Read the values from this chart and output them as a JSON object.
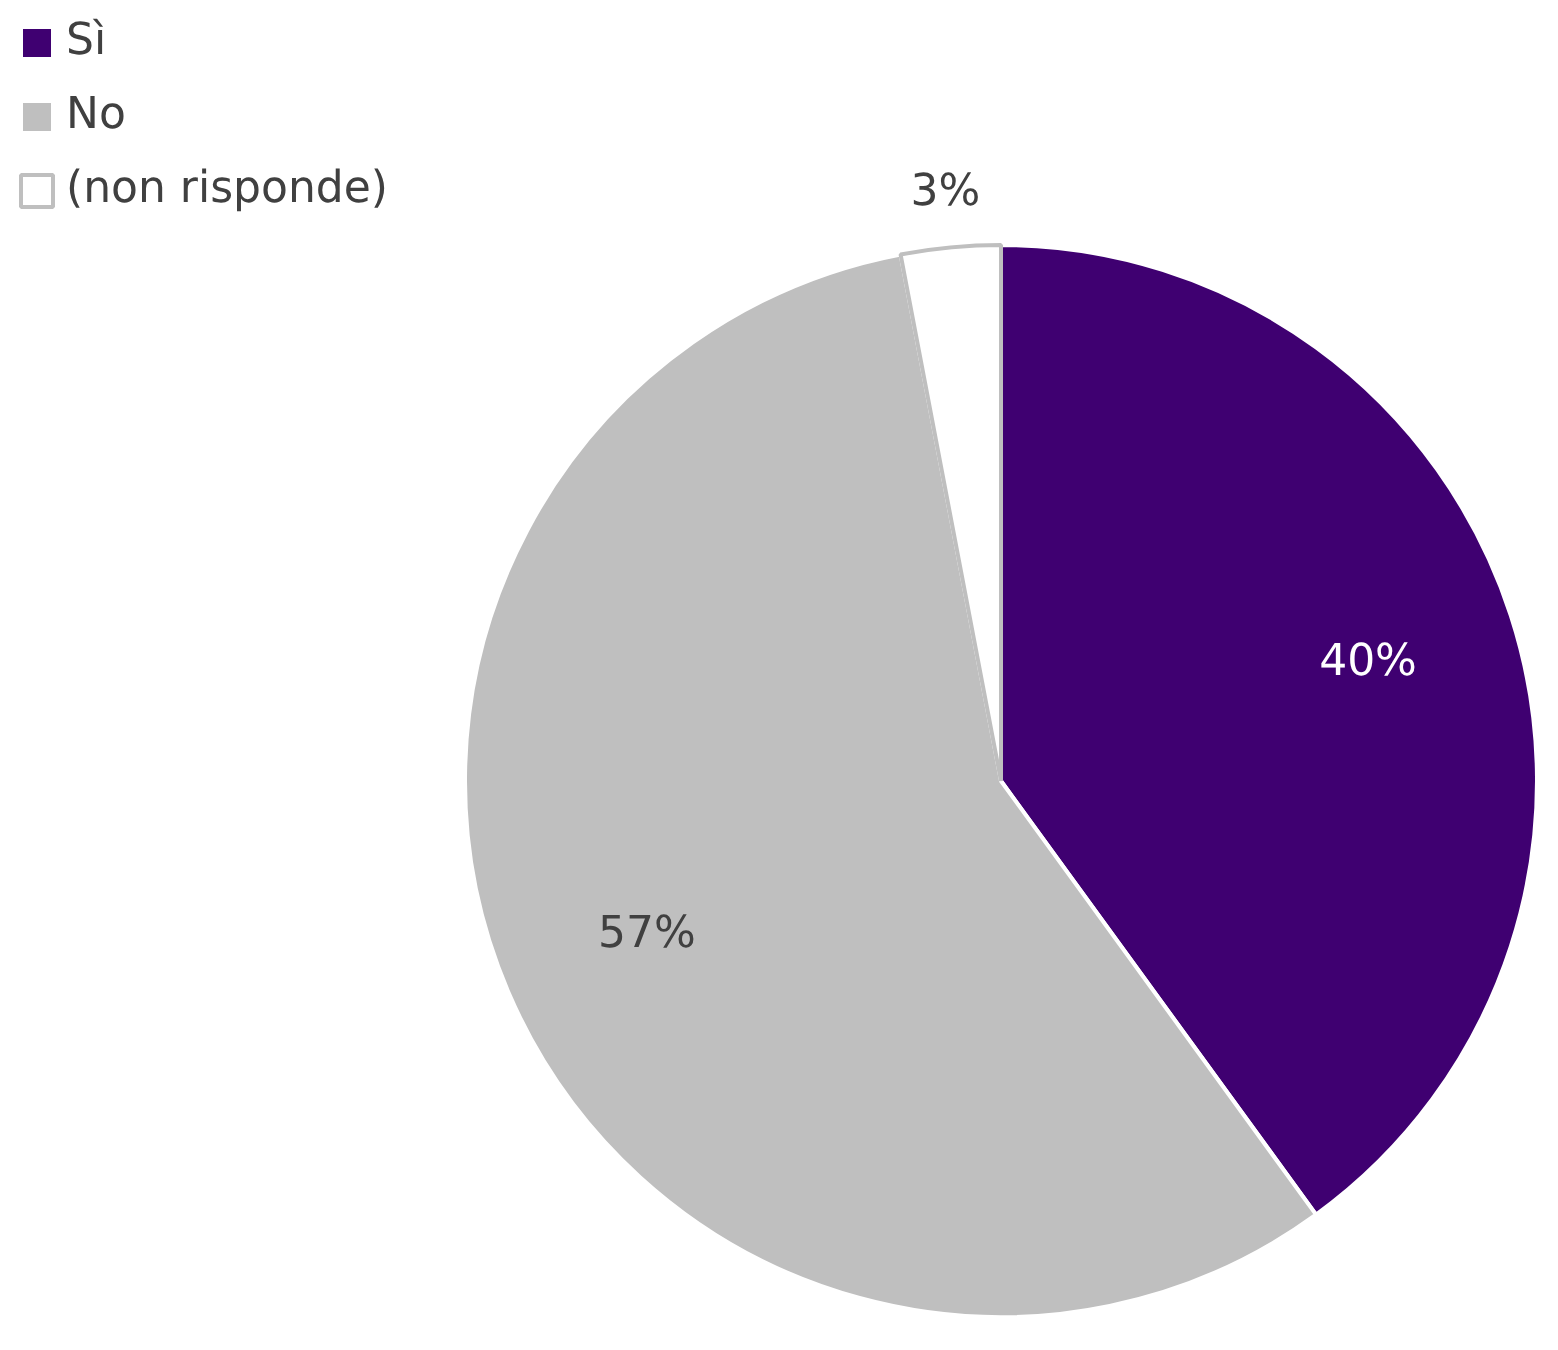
{
  "chart_data": {
    "type": "pie",
    "categories": [
      "Sì",
      "No",
      "(non risponde)"
    ],
    "values": [
      40,
      57,
      3
    ],
    "colors": [
      "#3f0071",
      "#bfbfbf",
      "#ffffff"
    ],
    "value_labels": [
      "40%",
      "57%",
      "3%"
    ],
    "legend": "top left"
  }
}
